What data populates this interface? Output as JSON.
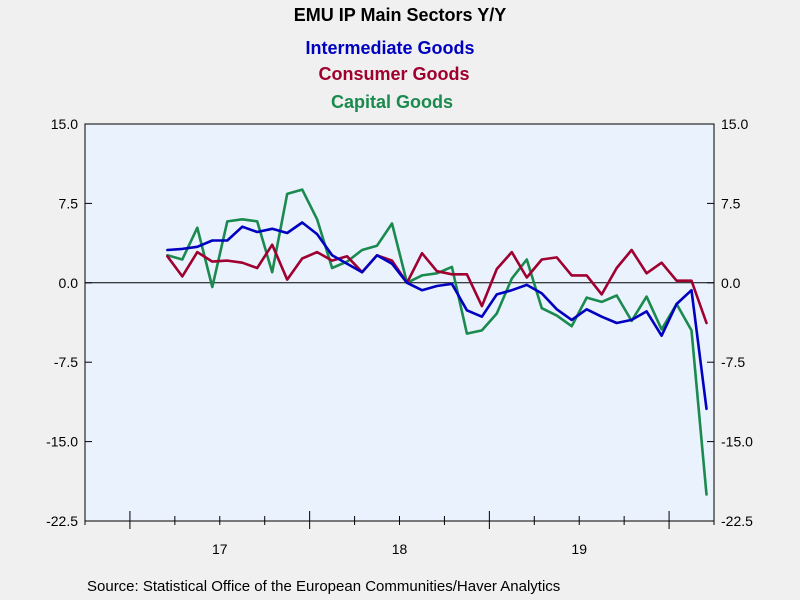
{
  "chart_data": {
    "type": "line",
    "title": "EMU IP Main Sectors Y/Y",
    "source": "Source:  Statistical Office of the European Communities/Haver Analytics",
    "ylim": [
      -22.5,
      15.0
    ],
    "yticks": [
      {
        "value": 15.0,
        "label": "15.0"
      },
      {
        "value": 7.5,
        "label": "7.5"
      },
      {
        "value": 0.0,
        "label": "0.0"
      },
      {
        "value": -7.5,
        "label": "-7.5"
      },
      {
        "value": -15.0,
        "label": "-15.0"
      },
      {
        "value": -22.5,
        "label": "-22.5"
      }
    ],
    "x_start": "2016-10",
    "x_end": "2020-03",
    "years": [
      {
        "label": "17",
        "year": 2017
      },
      {
        "label": "18",
        "year": 2018
      },
      {
        "label": "19",
        "year": 2019
      }
    ],
    "grid": false,
    "zero_line": true,
    "legend_placement": "top",
    "series": [
      {
        "name": "Intermediate Goods",
        "color": "#0000c0",
        "values": [
          3.1,
          3.2,
          3.4,
          4.0,
          4.0,
          5.3,
          4.8,
          5.1,
          4.7,
          5.7,
          4.6,
          2.6,
          1.8,
          1.0,
          2.6,
          1.8,
          0.0,
          -0.7,
          -0.3,
          -0.1,
          -2.6,
          -3.2,
          -1.1,
          -0.7,
          -0.2,
          -1.0,
          -2.5,
          -3.5,
          -2.5,
          -3.2,
          -3.8,
          -3.5,
          -2.7,
          -5.0,
          -2.0,
          -0.7,
          -11.9
        ]
      },
      {
        "name": "Consumer Goods",
        "color": "#a00030",
        "values": [
          2.5,
          0.6,
          2.9,
          2.0,
          2.1,
          1.9,
          1.4,
          3.6,
          0.3,
          2.3,
          2.9,
          2.1,
          2.5,
          1.0,
          2.6,
          2.1,
          0.0,
          2.8,
          1.1,
          0.8,
          0.8,
          -2.2,
          1.3,
          2.9,
          0.5,
          2.2,
          2.4,
          0.7,
          0.7,
          -1.1,
          1.4,
          3.1,
          0.9,
          1.9,
          0.2,
          0.2,
          -3.8
        ]
      },
      {
        "name": "Capital Goods",
        "color": "#1a8a4e",
        "values": [
          2.6,
          2.2,
          5.2,
          -0.4,
          5.8,
          6.0,
          5.8,
          1.0,
          8.4,
          8.8,
          6.0,
          1.4,
          2.0,
          3.1,
          3.5,
          5.6,
          0.0,
          0.7,
          0.9,
          1.5,
          -4.8,
          -4.5,
          -2.9,
          0.4,
          2.2,
          -2.4,
          -3.1,
          -4.1,
          -1.4,
          -1.8,
          -1.2,
          -3.6,
          -1.3,
          -4.4,
          -2.0,
          -4.5,
          -20.0
        ]
      }
    ]
  }
}
